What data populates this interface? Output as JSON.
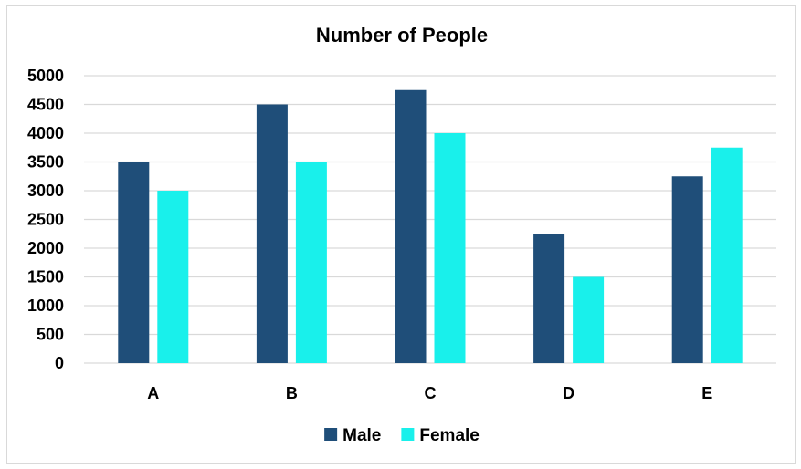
{
  "chart_data": {
    "type": "bar",
    "title": "Number of People",
    "xlabel": "",
    "ylabel": "",
    "categories": [
      "A",
      "B",
      "C",
      "D",
      "E"
    ],
    "series": [
      {
        "name": "Male",
        "color": "#1f4e79",
        "values": [
          3500,
          4500,
          4750,
          2250,
          3250
        ]
      },
      {
        "name": "Female",
        "color": "#19f0eb",
        "values": [
          3000,
          3500,
          4000,
          1500,
          3750
        ]
      }
    ],
    "ylim": [
      0,
      5000
    ],
    "yticks": [
      "0",
      "500",
      "1000",
      "1500",
      "2000",
      "2500",
      "3000",
      "3500",
      "4000",
      "4500",
      "5000"
    ],
    "grid": true,
    "legend": "bottom"
  }
}
